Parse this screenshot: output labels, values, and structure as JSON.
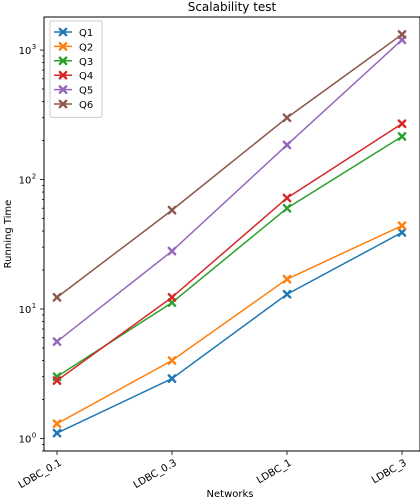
{
  "chart_data": {
    "type": "line",
    "title": "Scalability test",
    "xlabel": "Networks",
    "ylabel": "Running Time",
    "categories": [
      "LDBC_0.1",
      "LDBC_0.3",
      "LDBC_1",
      "LDBC_3"
    ],
    "yscale": "log",
    "ylim": [
      0.8,
      1800
    ],
    "yticks": [
      {
        "value": 1,
        "label": "10",
        "exp": "0"
      },
      {
        "value": 10,
        "label": "10",
        "exp": "1"
      },
      {
        "value": 100,
        "label": "10",
        "exp": "2"
      },
      {
        "value": 1000,
        "label": "10",
        "exp": "3"
      }
    ],
    "legend_position": "top-left",
    "grid": false,
    "marker": "x",
    "series": [
      {
        "name": "Q1",
        "color": "#1f77b4",
        "values": [
          1.1,
          2.9,
          13,
          39
        ]
      },
      {
        "name": "Q2",
        "color": "#ff7f0e",
        "values": [
          1.3,
          4.0,
          17,
          44
        ]
      },
      {
        "name": "Q3",
        "color": "#2ca02c",
        "values": [
          3.0,
          11.2,
          60,
          215
        ]
      },
      {
        "name": "Q4",
        "color": "#d62728",
        "values": [
          2.8,
          12.3,
          72,
          270
        ]
      },
      {
        "name": "Q5",
        "color": "#9467bd",
        "values": [
          5.6,
          28,
          185,
          1200
        ]
      },
      {
        "name": "Q6",
        "color": "#8c564b",
        "values": [
          12.3,
          58,
          300,
          1320
        ]
      }
    ]
  }
}
